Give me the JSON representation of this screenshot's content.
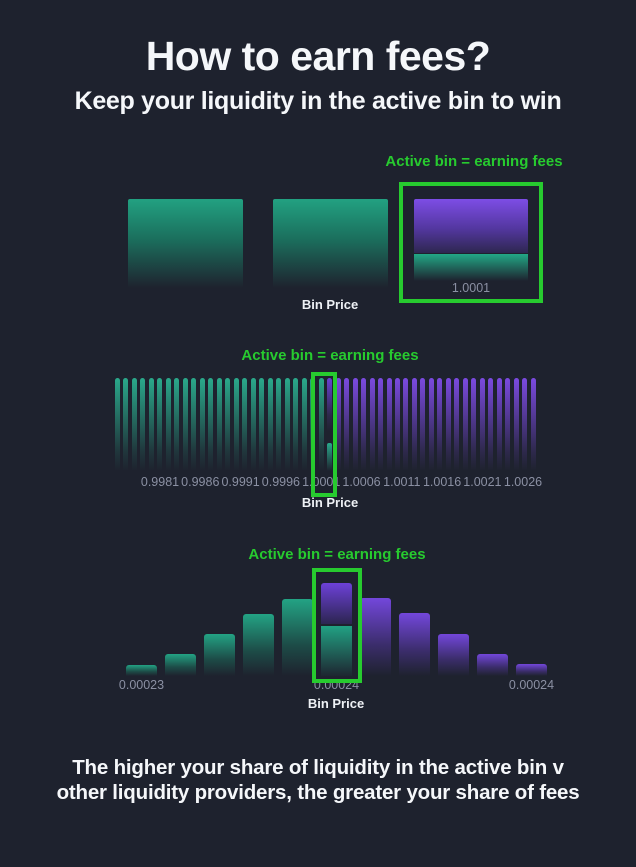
{
  "colors": {
    "background": "#1e222e",
    "accent_green": "#27cb2f",
    "teal_top": "#2aa98b",
    "purple_top": "#7b4ae0",
    "label_gray": "#8b90a3",
    "text_white": "#f5f7fa"
  },
  "header": {
    "title": "How to earn fees?",
    "subtitle": "Keep your liquidity in the active bin to win"
  },
  "sections": [
    {
      "annotation": "Active bin = earning fees",
      "axis_label": "Bin Price",
      "active_label": "1.0001"
    },
    {
      "annotation": "Active bin = earning fees",
      "axis_label": "Bin Price"
    },
    {
      "annotation": "Active bin = earning fees",
      "axis_label": "Bin Price"
    }
  ],
  "footer": {
    "line1": "The higher your share of liquidity in the active bin v",
    "line2": "other liquidity providers, the greater your share of fees"
  },
  "chart_data": [
    {
      "type": "bar",
      "annotation": "Active bin = earning fees",
      "xlabel": "Bin Price",
      "categories": [
        "",
        "",
        "1.0001"
      ],
      "values": [
        100,
        100,
        100
      ],
      "colors": [
        "teal",
        "teal",
        "active"
      ],
      "active_index": 2,
      "active_bin": {
        "label": "1.0001",
        "quote_fraction": 0.6,
        "base_fraction": 0.4
      }
    },
    {
      "type": "bar",
      "annotation": "Active bin = earning fees",
      "xlabel": "Bin Price",
      "num_bins": 50,
      "uniform_height": 100,
      "active_index": 25,
      "left_color": "teal",
      "right_color": "purple",
      "active_bin": {
        "base_stub_fraction": 0.3
      },
      "tick_labels": [
        "0.9981",
        "0.9986",
        "0.9991",
        "0.9996",
        "1.0001",
        "1.0006",
        "1.0011",
        "1.0016",
        "1.0021",
        "1.0026"
      ]
    },
    {
      "type": "bar",
      "annotation": "Active bin = earning fees",
      "xlabel": "Bin Price",
      "heights": [
        12,
        24,
        45,
        67,
        83,
        100,
        84,
        68,
        45,
        24,
        13
      ],
      "colors": [
        "teal",
        "teal",
        "teal",
        "teal",
        "teal",
        "active",
        "purple",
        "purple",
        "purple",
        "purple",
        "purple"
      ],
      "active_index": 5,
      "tick_labels": [
        {
          "index": 0,
          "label": "0.00023"
        },
        {
          "index": 5,
          "label": "0.00024"
        },
        {
          "index": 10,
          "label": "0.00024"
        }
      ]
    }
  ]
}
